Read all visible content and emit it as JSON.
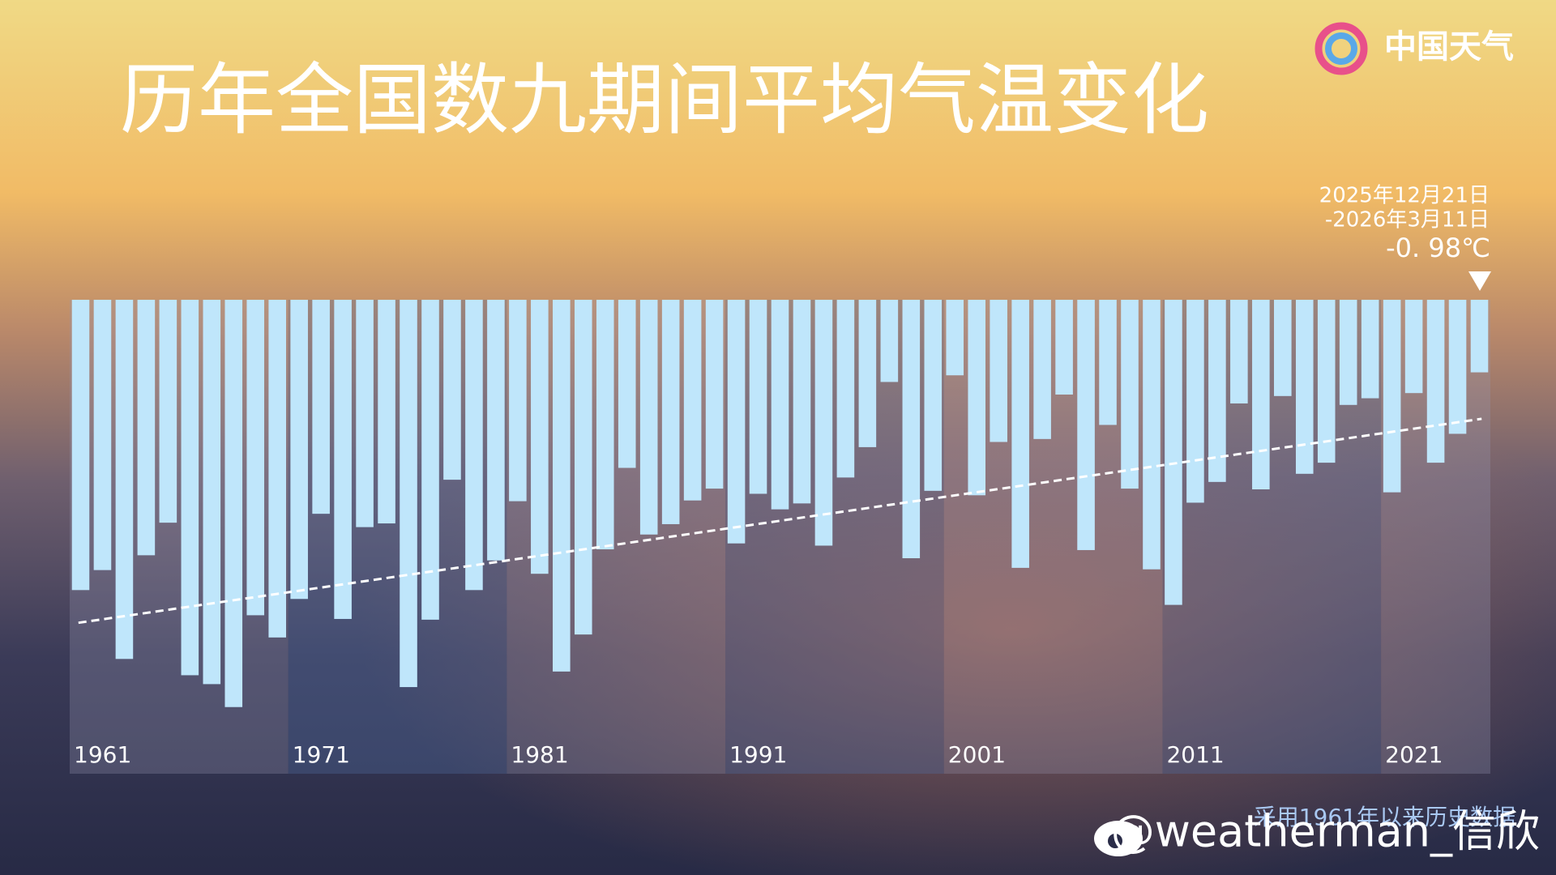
{
  "logo": "中国天气",
  "footnote": "采用1961年以来历史数据",
  "watermark": "@weatherman_信欣",
  "chart_data": {
    "type": "bar",
    "title": "历年全国数九期间平均气温变化",
    "annotation": [
      "2025年12月21日",
      "-2026年3月11日"
    ],
    "categories": [
      "1961",
      null,
      null,
      null,
      null,
      null,
      null,
      null,
      null,
      null,
      "1971",
      null,
      null,
      null,
      null,
      null,
      null,
      null,
      null,
      null,
      "1981",
      null,
      null,
      null,
      null,
      null,
      null,
      null,
      null,
      null,
      "1991",
      null,
      null,
      null,
      null,
      null,
      null,
      null,
      null,
      null,
      "2001",
      null,
      null,
      null,
      null,
      null,
      null,
      null,
      null,
      null,
      "2011",
      null,
      null,
      null,
      null,
      null,
      null,
      null,
      null,
      null,
      "2021",
      null,
      null,
      null,
      null
    ],
    "values": [
      -3.92,
      -3.65,
      -4.85,
      -3.45,
      -3.01,
      -5.07,
      -5.19,
      -5.5,
      -4.26,
      -4.56,
      -4.04,
      -2.89,
      -4.31,
      -3.07,
      -3.02,
      -5.23,
      -4.32,
      -2.43,
      -3.92,
      -3.52,
      -2.72,
      -3.7,
      -5.02,
      -4.52,
      -3.37,
      -2.27,
      -3.17,
      -3.03,
      -2.71,
      -2.55,
      -3.29,
      -2.62,
      -2.83,
      -2.75,
      -3.32,
      -2.4,
      -1.99,
      -1.11,
      -3.49,
      -2.58,
      -1.02,
      -2.64,
      -1.92,
      -3.62,
      -1.88,
      -1.28,
      -3.38,
      -1.69,
      -2.55,
      -3.64,
      -4.12,
      -2.74,
      -2.46,
      -1.4,
      -2.56,
      -1.3,
      -2.35,
      -2.2,
      -1.42,
      -1.33,
      -2.6,
      -1.26,
      -2.2,
      -1.81,
      -0.98
    ],
    "value_labels": [
      null,
      null,
      null,
      null,
      null,
      null,
      null,
      null,
      null,
      null,
      null,
      null,
      null,
      null,
      null,
      null,
      null,
      null,
      null,
      null,
      null,
      null,
      null,
      null,
      null,
      null,
      null,
      null,
      null,
      null,
      null,
      null,
      null,
      null,
      null,
      null,
      null,
      null,
      null,
      null,
      null,
      null,
      null,
      null,
      null,
      null,
      null,
      null,
      null,
      null,
      null,
      null,
      null,
      null,
      null,
      null,
      null,
      null,
      null,
      null,
      null,
      null,
      null,
      null,
      "-0. 98℃"
    ],
    "color": "#bfe6fb",
    "ylim": [
      0,
      -6.4
    ],
    "trend_line": true
  }
}
